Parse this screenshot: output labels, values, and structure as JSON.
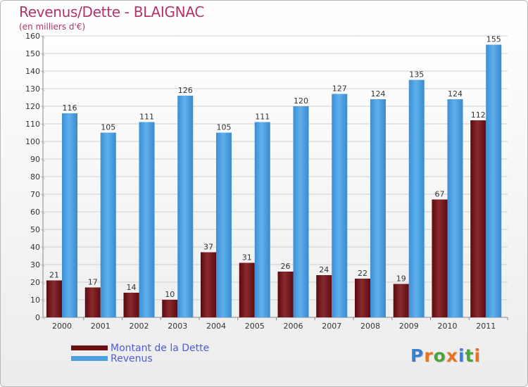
{
  "title": "Revenus/Dette - BLAIGNAC",
  "subtitle": "(en milliers d'€)",
  "logo": {
    "letters": [
      "P",
      "r",
      "o",
      "x",
      "i",
      "t",
      "i"
    ],
    "colors": [
      "#3a7fd5",
      "#e8731f",
      "#4aa63c",
      "#e8731f",
      "#3a7fd5",
      "#4aa63c",
      "#e8731f"
    ]
  },
  "colors": {
    "dette": "#6b0f13",
    "revenus": "#4a9fe0",
    "title": "#b3326b",
    "legend_text": "#4f5bd5"
  },
  "chart_data": {
    "type": "bar",
    "categories": [
      "2000",
      "2001",
      "2002",
      "2003",
      "2004",
      "2005",
      "2006",
      "2007",
      "2008",
      "2009",
      "2010",
      "2011"
    ],
    "series": [
      {
        "name": "Montant de la Dette",
        "values": [
          21,
          17,
          14,
          10,
          37,
          31,
          26,
          24,
          22,
          19,
          67,
          112
        ]
      },
      {
        "name": "Revenus",
        "values": [
          116,
          105,
          111,
          126,
          105,
          111,
          120,
          127,
          124,
          135,
          124,
          155
        ]
      }
    ],
    "ylim": [
      0,
      160
    ],
    "yticks": [
      0,
      10,
      20,
      30,
      40,
      50,
      60,
      70,
      80,
      90,
      100,
      110,
      120,
      130,
      140,
      150,
      160
    ],
    "grid": true,
    "legend_position": "bottom-left"
  }
}
